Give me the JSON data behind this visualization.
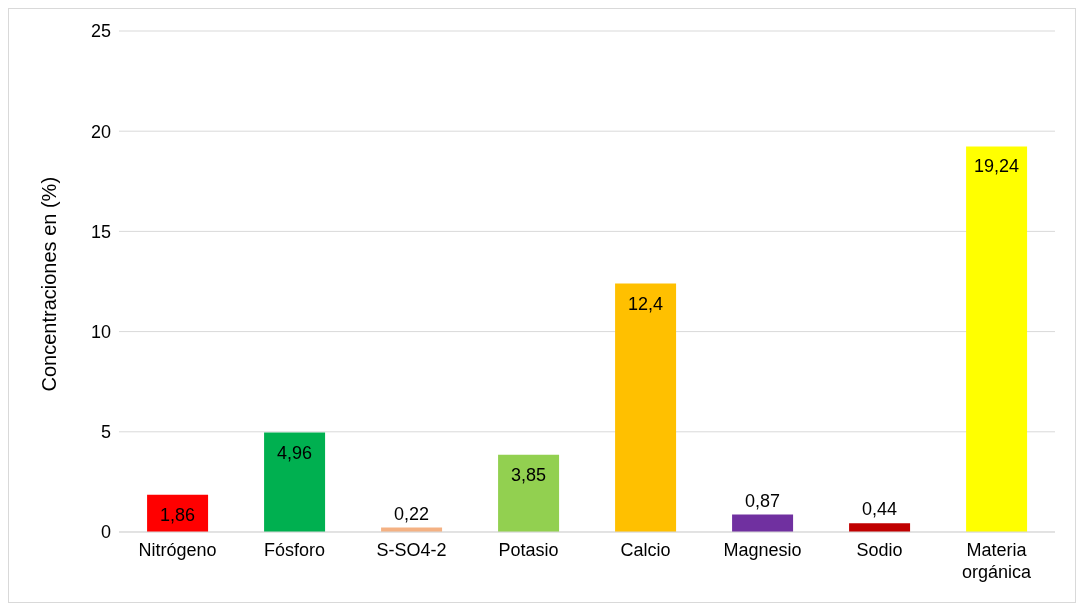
{
  "chart_data": {
    "type": "bar",
    "ylabel": "Concentraciones en (%)",
    "categories": [
      "Nitrógeno",
      "Fósforo",
      "S-SO4-2",
      "Potasio",
      "Calcio",
      "Magnesio",
      "Sodio",
      "Materia orgánica"
    ],
    "values": [
      1.86,
      4.96,
      0.22,
      3.85,
      12.4,
      0.87,
      0.44,
      19.24
    ],
    "colors": [
      "#ff0000",
      "#00b050",
      "#f4b183",
      "#92d050",
      "#ffc000",
      "#7030a0",
      "#c00000",
      "#ffff00"
    ],
    "value_labels": [
      "1,86",
      "4,96",
      "0,22",
      "3,85",
      "12,4",
      "0,87",
      "0,44",
      "19,24"
    ],
    "ylim": [
      0,
      25
    ],
    "yticks": [
      0,
      5,
      10,
      15,
      20,
      25
    ],
    "grid": "y"
  }
}
